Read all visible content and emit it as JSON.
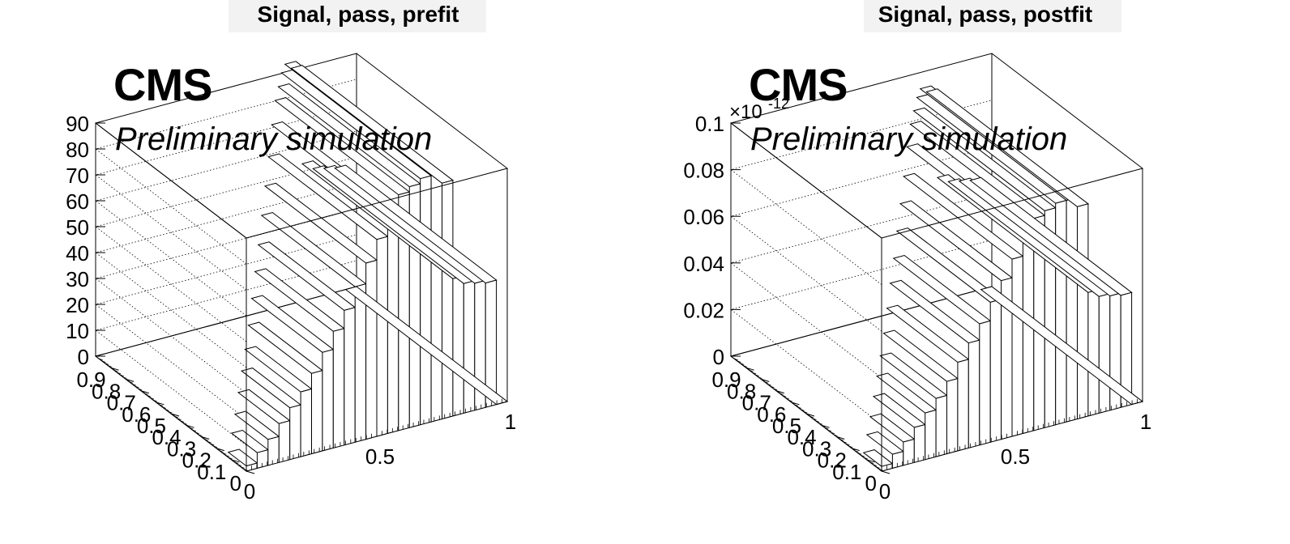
{
  "chart_data": [
    {
      "type": "lego3d",
      "title": "Signal, pass, prefit",
      "cms_label": "CMS",
      "extra_label": "Preliminary simulation",
      "z_exponent": "",
      "zlim": [
        0,
        90
      ],
      "z_ticks": [
        "0",
        "10",
        "20",
        "30",
        "40",
        "50",
        "60",
        "70",
        "80",
        "90"
      ],
      "z_tick_values": [
        0,
        10,
        20,
        30,
        40,
        50,
        60,
        70,
        80,
        90
      ],
      "x_ticks": [
        "0",
        "0.5",
        "1"
      ],
      "x_tick_values": [
        0,
        0.5,
        1
      ],
      "y_ticks": [
        "0",
        "0.1",
        "0.2",
        "0.3",
        "0.4",
        "0.5",
        "0.6",
        "0.7",
        "0.8",
        "0.9"
      ],
      "y_tick_values": [
        0,
        0.1,
        0.2,
        0.3,
        0.4,
        0.5,
        0.6,
        0.7,
        0.8,
        0.9
      ],
      "grid": true,
      "values": [
        2,
        6,
        10,
        15,
        20,
        25,
        31,
        38,
        45,
        52,
        60,
        68,
        76,
        85,
        91,
        93,
        95,
        95,
        91,
        53,
        50,
        49,
        48,
        0
      ]
    },
    {
      "type": "lego3d",
      "title": "Signal, pass, postfit",
      "cms_label": "CMS",
      "extra_label": "Preliminary simulation",
      "z_exponent": "×10",
      "z_exponent_power": "-12",
      "zlim": [
        0,
        0.1
      ],
      "z_ticks": [
        "0",
        "0.02",
        "0.04",
        "0.06",
        "0.08",
        "0.1"
      ],
      "z_tick_values": [
        0,
        0.02,
        0.04,
        0.06,
        0.08,
        0.1
      ],
      "x_ticks": [
        "0",
        "0.5",
        "1"
      ],
      "x_tick_values": [
        0,
        0.5,
        1
      ],
      "y_ticks": [
        "0",
        "0.1",
        "0.2",
        "0.3",
        "0.4",
        "0.5",
        "0.6",
        "0.7",
        "0.8",
        "0.9"
      ],
      "y_tick_values": [
        0,
        0.1,
        0.2,
        0.3,
        0.4,
        0.5,
        0.6,
        0.7,
        0.8,
        0.9
      ],
      "grid": true,
      "values": [
        0.002,
        0.006,
        0.01,
        0.015,
        0.02,
        0.025,
        0.031,
        0.038,
        0.045,
        0.052,
        0.06,
        0.068,
        0.076,
        0.085,
        0.091,
        0.093,
        0.095,
        0.095,
        0.091,
        0.053,
        0.05,
        0.049,
        0.048,
        0.0
      ]
    }
  ]
}
